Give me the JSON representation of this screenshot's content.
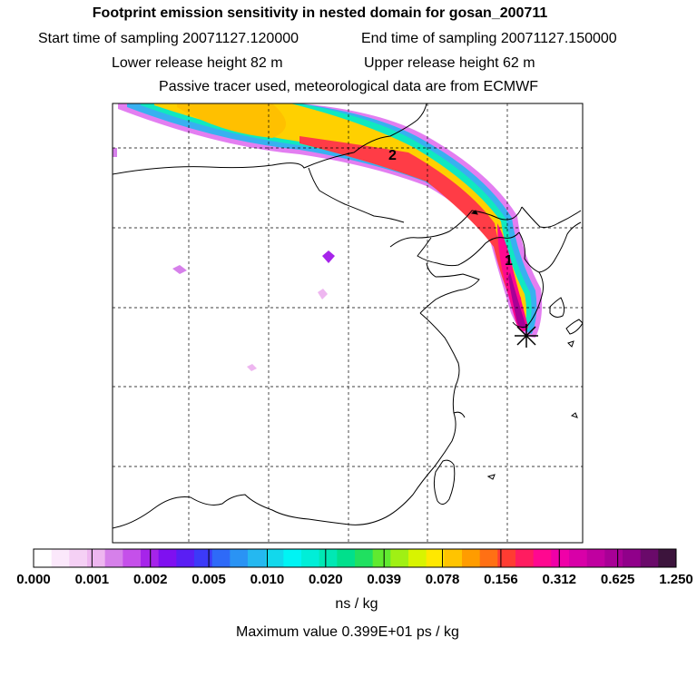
{
  "header": {
    "title": "Footprint emission sensitivity in nested domain for gosan_200711",
    "start": "Start time of sampling 20071127.120000",
    "end": "End time of sampling 20071127.150000",
    "lower": "Lower release height   82 m",
    "upper": "Upper release height   62 m",
    "tracer": "Passive tracer used, meteorological data are from ECMWF"
  },
  "map": {
    "markers": [
      {
        "label": "2"
      },
      {
        "label": "1"
      }
    ]
  },
  "colorbar": {
    "colors": [
      "#ffffff",
      "#fbe8fb",
      "#f5d0f5",
      "#eeb6f0",
      "#d680ea",
      "#c550ea",
      "#a624ea",
      "#7f10f0",
      "#5a1ef4",
      "#3c3af8",
      "#2e6af8",
      "#2a93f4",
      "#25b8f0",
      "#12d8ec",
      "#00f4f4",
      "#00eed8",
      "#00e8b4",
      "#00e08c",
      "#20e060",
      "#60ea30",
      "#a0f014",
      "#d8f400",
      "#ffe800",
      "#ffc400",
      "#ff9c00",
      "#ff7014",
      "#ff3c32",
      "#ff1c60",
      "#ff0890",
      "#f000a8",
      "#d800a8",
      "#c000a0",
      "#a80096",
      "#90008a",
      "#6a0a6a",
      "#3c143c"
    ],
    "ticks": [
      "0.000",
      "0.001",
      "0.002",
      "0.005",
      "0.010",
      "0.020",
      "0.039",
      "0.078",
      "0.156",
      "0.312",
      "0.625",
      "1.250"
    ],
    "units": "ns / kg",
    "maximum": "Maximum value  0.399E+01 ps / kg"
  }
}
